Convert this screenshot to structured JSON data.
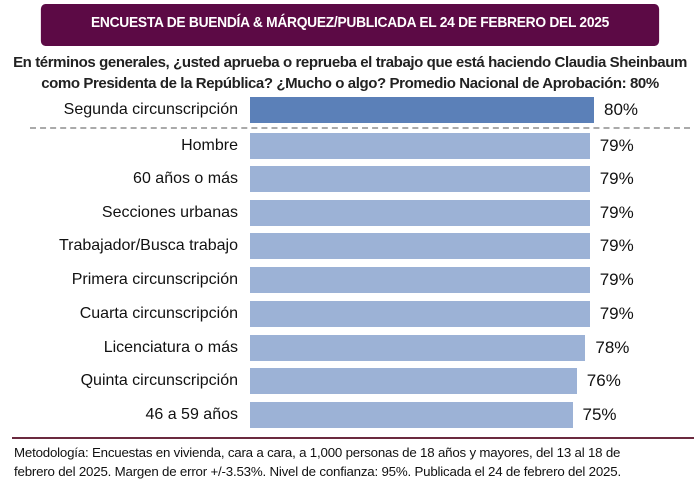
{
  "header": {
    "banner": "ENCUESTA DE BUENDÍA & MÁRQUEZ/PUBLICADA EL 24 DE FEBRERO DEL 2025",
    "question_line1": "En términos generales, ¿usted aprueba o reprueba el trabajo que está haciendo Claudia Sheinbaum",
    "question_line2": "como Presidenta de la República? ¿Mucho o algo?  Promedio Nacional de Aprobación: 80%"
  },
  "chart_data": {
    "type": "bar",
    "orientation": "horizontal",
    "categories": [
      "Segunda circunscripción",
      "Hombre",
      "60 años o más",
      "Secciones urbanas",
      "Trabajador/Busca trabajo",
      "Primera circunscripción",
      "Cuarta circunscripción",
      "Licenciatura o más",
      "Quinta circunscripción",
      "46 a 59 años"
    ],
    "values": [
      80,
      79,
      79,
      79,
      79,
      79,
      79,
      78,
      76,
      75
    ],
    "value_labels": [
      "80%",
      "79%",
      "79%",
      "79%",
      "79%",
      "79%",
      "79%",
      "78%",
      "76%",
      "75%"
    ],
    "highlight_color": "#5b80b8",
    "bar_color": "#9cb2d6",
    "xlim": [
      0,
      100
    ]
  },
  "footer": {
    "line1": "Metodología: Encuestas en vivienda, cara a cara, a 1,000 personas de 18 años y mayores, del 13 al 18 de",
    "line2": "febrero del 2025. Margen de error +/-3.53%.  Nivel de confianza: 95%. Publicada el 24 de febrero del 2025."
  }
}
